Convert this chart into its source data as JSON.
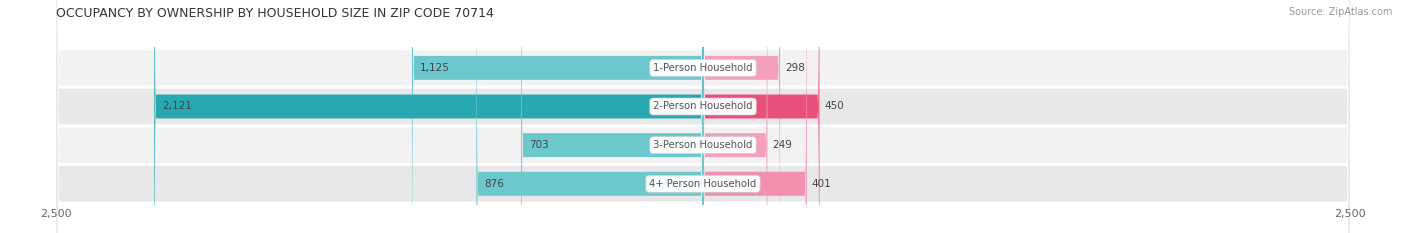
{
  "title": "OCCUPANCY BY OWNERSHIP BY HOUSEHOLD SIZE IN ZIP CODE 70714",
  "source": "Source: ZipAtlas.com",
  "categories": [
    "1-Person Household",
    "2-Person Household",
    "3-Person Household",
    "4+ Person Household"
  ],
  "owner_values": [
    1125,
    2121,
    703,
    876
  ],
  "renter_values": [
    298,
    450,
    249,
    401
  ],
  "owner_colors": [
    "#6cc8cc",
    "#2aa8b0",
    "#6cc8cc",
    "#6cc8cc"
  ],
  "renter_colors": [
    "#f4a0bc",
    "#e8507a",
    "#f4a0bc",
    "#f090ac"
  ],
  "row_bg_colors": [
    "#f2f2f2",
    "#e8e8e8",
    "#f2f2f2",
    "#e8e8e8"
  ],
  "axis_max": 2500,
  "label_color": "#555555",
  "value_label_color": "#444444",
  "title_color": "#333333",
  "owner_legend_color": "#5bbcbe",
  "renter_legend_color": "#f07fa0",
  "fig_width": 14.06,
  "fig_height": 2.33
}
